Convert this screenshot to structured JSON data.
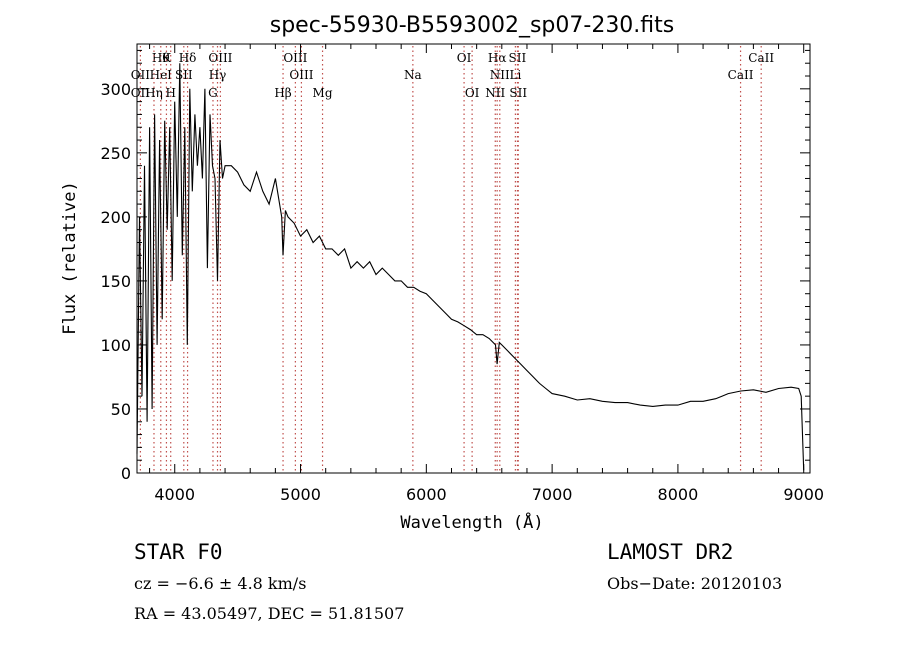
{
  "chart_data": {
    "type": "line",
    "title": "spec-55930-B5593002_sp07-230.fits",
    "xlabel": "Wavelength (Å)",
    "ylabel": "Flux (relative)",
    "xlim": [
      3700,
      9050
    ],
    "ylim": [
      0,
      335
    ],
    "xticks": [
      4000,
      5000,
      6000,
      7000,
      8000,
      9000
    ],
    "yticks": [
      0,
      50,
      100,
      150,
      200,
      250,
      300
    ],
    "grid": false,
    "series": [
      {
        "x": [
          3700,
          3720,
          3740,
          3760,
          3780,
          3800,
          3820,
          3840,
          3860,
          3880,
          3900,
          3920,
          3940,
          3960,
          3980,
          4000,
          4020,
          4040,
          4060,
          4080,
          4100,
          4120,
          4140,
          4160,
          4180,
          4200,
          4220,
          4240,
          4260,
          4280,
          4300,
          4320,
          4340,
          4360,
          4380,
          4400,
          4450,
          4500,
          4550,
          4600,
          4650,
          4700,
          4750,
          4800,
          4850,
          4861,
          4880,
          4900,
          4950,
          5000,
          5050,
          5100,
          5150,
          5200,
          5250,
          5300,
          5350,
          5400,
          5450,
          5500,
          5550,
          5600,
          5650,
          5700,
          5750,
          5800,
          5850,
          5900,
          5950,
          6000,
          6050,
          6100,
          6150,
          6200,
          6250,
          6300,
          6350,
          6400,
          6450,
          6500,
          6550,
          6563,
          6580,
          6600,
          6650,
          6700,
          6750,
          6800,
          6850,
          6900,
          6950,
          7000,
          7100,
          7200,
          7300,
          7400,
          7500,
          7600,
          7700,
          7800,
          7900,
          8000,
          8100,
          8200,
          8300,
          8350,
          8400,
          8500,
          8600,
          8700,
          8800,
          8900,
          8960,
          8980,
          9000
        ],
        "y": [
          15,
          200,
          60,
          240,
          40,
          270,
          50,
          280,
          100,
          260,
          120,
          275,
          190,
          270,
          150,
          290,
          200,
          320,
          170,
          270,
          100,
          300,
          220,
          280,
          240,
          270,
          230,
          300,
          160,
          280,
          240,
          230,
          150,
          260,
          230,
          240,
          240,
          235,
          225,
          220,
          235,
          220,
          210,
          230,
          200,
          170,
          205,
          200,
          195,
          185,
          190,
          180,
          185,
          175,
          175,
          170,
          175,
          160,
          165,
          160,
          165,
          155,
          160,
          155,
          150,
          150,
          145,
          145,
          142,
          140,
          135,
          130,
          125,
          120,
          118,
          115,
          112,
          108,
          108,
          105,
          100,
          85,
          102,
          100,
          95,
          90,
          85,
          80,
          75,
          70,
          66,
          62,
          60,
          57,
          58,
          56,
          55,
          55,
          53,
          52,
          53,
          53,
          56,
          56,
          58,
          60,
          62,
          64,
          65,
          63,
          66,
          67,
          66,
          60,
          2
        ]
      }
    ],
    "lines_top": [
      {
        "wl": 3889,
        "label": "Hθ"
      },
      {
        "wl": 3934,
        "label": "K"
      },
      {
        "wl": 4102,
        "label": "Hδ"
      },
      {
        "wl": 4363,
        "label": "OIII"
      },
      {
        "wl": 4959,
        "label": "OIII"
      },
      {
        "wl": 6300,
        "label": "OI"
      },
      {
        "wl": 6563,
        "label": "Hα"
      },
      {
        "wl": 6724,
        "label": "SII"
      },
      {
        "wl": 8662,
        "label": "CaII"
      }
    ],
    "lines_mid": [
      {
        "wl": 3727,
        "label": "OII"
      },
      {
        "wl": 3889,
        "label": "HeI"
      },
      {
        "wl": 4072,
        "label": "SII"
      },
      {
        "wl": 4340,
        "label": "Hγ"
      },
      {
        "wl": 5007,
        "label": "OIII"
      },
      {
        "wl": 5893,
        "label": "Na"
      },
      {
        "wl": 6584,
        "label": "NII"
      },
      {
        "wl": 6708,
        "label": "Li"
      },
      {
        "wl": 8498,
        "label": "CaII"
      }
    ],
    "lines_low": [
      {
        "wl": 3727,
        "label": "OII"
      },
      {
        "wl": 3835,
        "label": "Hη"
      },
      {
        "wl": 3968,
        "label": "H"
      },
      {
        "wl": 4304,
        "label": "G"
      },
      {
        "wl": 4861,
        "label": "Hβ"
      },
      {
        "wl": 5175,
        "label": "Mg"
      },
      {
        "wl": 6364,
        "label": "OI"
      },
      {
        "wl": 6548,
        "label": "NII"
      },
      {
        "wl": 6731,
        "label": "SII"
      }
    ]
  },
  "info": {
    "object": "STAR    F0",
    "cz": "cz = −6.6 ± 4.8 km/s",
    "radec": "RA =  43.05497, DEC =  51.81507",
    "survey": "LAMOST DR2",
    "obsdate": "Obs−Date: 20120103"
  }
}
